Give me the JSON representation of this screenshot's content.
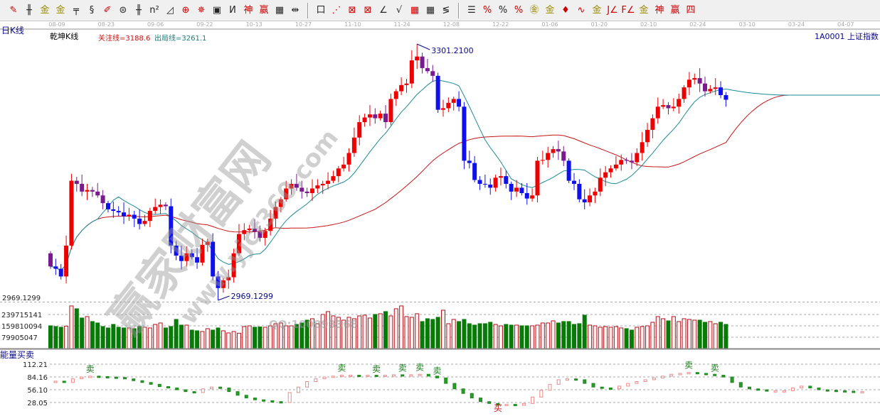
{
  "toolbar": {
    "groups": [
      [
        {
          "name": "pen-icon",
          "g": "✎",
          "c": "r"
        },
        {
          "name": "parallel-lines-icon",
          "g": "╫"
        },
        {
          "name": "gold-line-icon",
          "g": "金",
          "c": "g"
        },
        {
          "name": "gold-split-icon",
          "g": "金",
          "c": "g"
        },
        {
          "name": "step-line-icon",
          "g": "╤"
        },
        {
          "name": "spiral-icon",
          "g": "§"
        },
        {
          "name": "ruler-pen-icon",
          "g": "✐",
          "c": "r"
        },
        {
          "name": "circle-grid-icon",
          "g": "⊜"
        },
        {
          "name": "triple-lines-icon",
          "g": "╫"
        },
        {
          "name": "n-square-icon",
          "g": "n²"
        },
        {
          "name": "triangle-icon",
          "g": "◿"
        },
        {
          "name": "target-icon",
          "g": "⊕",
          "c": "r"
        },
        {
          "name": "compass-icon",
          "g": "✵",
          "c": "r"
        },
        {
          "name": "square-target-icon",
          "g": "▣"
        },
        {
          "name": "wave-icon",
          "g": "И"
        },
        {
          "name": "god-line-icon",
          "g": "神",
          "c": "r"
        },
        {
          "name": "win-line-icon",
          "g": "赢",
          "c": "r"
        },
        {
          "name": "numbered-grid-icon",
          "g": "▦"
        },
        {
          "name": "measure-icon",
          "g": "⇹"
        }
      ],
      [
        {
          "name": "box-icon",
          "g": "口"
        },
        {
          "name": "fan-lines-icon",
          "g": "⋰",
          "c": "r"
        },
        {
          "name": "box-fan-icon",
          "g": "⊠",
          "c": "r"
        },
        {
          "name": "box-fan2-icon",
          "g": "⊠",
          "c": "r"
        },
        {
          "name": "angle-icon",
          "g": "∠"
        },
        {
          "name": "v-line-icon",
          "g": "√"
        },
        {
          "name": "grid-icon",
          "g": "▦",
          "c": "r"
        },
        {
          "name": "grid2-icon",
          "g": "▦"
        },
        {
          "name": "slash-lines-icon",
          "g": "≶"
        }
      ],
      [
        {
          "name": "steps-icon",
          "g": "☰"
        },
        {
          "name": "percent-line-icon",
          "g": "%",
          "c": "r"
        },
        {
          "name": "percent-icon",
          "g": "%"
        },
        {
          "name": "percent-lines-icon",
          "g": "%",
          "c": "r"
        },
        {
          "name": "gold-circle-icon",
          "g": "㊎",
          "c": "g"
        },
        {
          "name": "gold-lines-icon",
          "g": "金",
          "c": "g"
        },
        {
          "name": "rocket-icon",
          "g": "♦",
          "c": "r"
        },
        {
          "name": "sine-icon",
          "g": "∿",
          "c": "r"
        },
        {
          "name": "gold-box-icon",
          "g": "金",
          "c": "g"
        },
        {
          "name": "j-angle-icon",
          "g": "J∠",
          "c": "r"
        },
        {
          "name": "f-angle-icon",
          "g": "F∠",
          "c": "r"
        },
        {
          "name": "gold-angle-icon",
          "g": "金",
          "c": "g"
        },
        {
          "name": "god-angle-icon",
          "g": "神",
          "c": "r"
        },
        {
          "name": "win-angle-icon",
          "g": "赢",
          "c": "r"
        },
        {
          "name": "four-angle-icon",
          "g": "四",
          "c": "r"
        }
      ]
    ]
  },
  "date_axis": [
    {
      "x": "08-09"
    },
    {
      "x": "08-23"
    },
    {
      "x": "09-06"
    },
    {
      "x": "09-22"
    },
    {
      "x": "10-13"
    },
    {
      "x": "10-27"
    },
    {
      "x": "11-10"
    },
    {
      "x": "11-24"
    },
    {
      "x": "12-08"
    },
    {
      "x": "12-22"
    },
    {
      "x": "01-06"
    },
    {
      "x": "01-20"
    },
    {
      "x": "02-10"
    },
    {
      "x": "02-24"
    },
    {
      "x": "03-10"
    },
    {
      "x": "03-24"
    },
    {
      "x": "04-07"
    }
  ],
  "header": {
    "period": "日K线",
    "indicator": "乾坤K线",
    "focus_line": "关注线=3188.6",
    "exit_line": "出局线=3261.1",
    "symbol": "1A0001  上证指数"
  },
  "watermark": {
    "cn": "赢家财富网",
    "url": "www.yjcf360.com",
    "qq": "QQ:100893368"
  },
  "colors": {
    "up": "#ee0000",
    "down": "#1010ee",
    "transition": "#7a1a90",
    "ma_short": "#1a8a9a",
    "ma_long": "#c81414",
    "vol_up": "#b0141e",
    "vol_down": "#087a08",
    "label": "#0a0a8a"
  },
  "chart_data": {
    "type": "candlestick",
    "ylim": [
      2969.1299,
      3301.21
    ],
    "high_label": "3301.2100",
    "high_value": 3301.21,
    "high_index": 70,
    "low_label": "2969.1299",
    "low_value": 2969.1299,
    "low_index": 32,
    "price_axis_label": "2969.1299",
    "first_open": 3030,
    "close": [
      3013,
      3010,
      3000,
      3040,
      3124,
      3120,
      3110,
      3112,
      3110,
      3105,
      3095,
      3087,
      3085,
      3083,
      3078,
      3080,
      3075,
      3068,
      3072,
      3085,
      3090,
      3093,
      3091,
      3040,
      3027,
      3020,
      3030,
      3025,
      3018,
      3041,
      3045,
      3000,
      2985,
      2995,
      2999,
      3030,
      3055,
      3060,
      3062,
      3058,
      3050,
      3059,
      3075,
      3090,
      3100,
      3114,
      3120,
      3115,
      3110,
      3108,
      3114,
      3118,
      3120,
      3124,
      3130,
      3140,
      3145,
      3160,
      3180,
      3200,
      3206,
      3210,
      3205,
      3211,
      3200,
      3230,
      3240,
      3248,
      3250,
      3280,
      3285,
      3270,
      3266,
      3260,
      3216,
      3218,
      3225,
      3230,
      3220,
      3150,
      3147,
      3125,
      3120,
      3119,
      3115,
      3128,
      3130,
      3120,
      3110,
      3115,
      3108,
      3101,
      3105,
      3150,
      3151,
      3160,
      3165,
      3162,
      3150,
      3124,
      3120,
      3100,
      3096,
      3105,
      3110,
      3128,
      3135,
      3140,
      3145,
      3151,
      3150,
      3148,
      3160,
      3174,
      3190,
      3205,
      3220,
      3222,
      3218,
      3220,
      3230,
      3245,
      3255,
      3257,
      3250,
      3240,
      3243,
      3245,
      3235,
      3229
    ],
    "ma_periods": [
      10,
      40
    ],
    "volume": {
      "ticks": [
        "239715141",
        "159810094",
        "79905047"
      ],
      "tick_values": [
        239715141,
        159810094,
        79905047
      ],
      "values_m": [
        160,
        155,
        150,
        158,
        300,
        280,
        215,
        225,
        190,
        180,
        155,
        145,
        170,
        150,
        145,
        145,
        140,
        155,
        150,
        145,
        170,
        180,
        145,
        155,
        205,
        165,
        165,
        130,
        125,
        120,
        140,
        130,
        145,
        125,
        110,
        120,
        108,
        155,
        160,
        150,
        152,
        150,
        160,
        175,
        180,
        160,
        160,
        170,
        180,
        200,
        210,
        175,
        240,
        260,
        230,
        220,
        200,
        220,
        210,
        230,
        235,
        215,
        240,
        245,
        260,
        230,
        280,
        300,
        225,
        220,
        245,
        190,
        210,
        205,
        220,
        270,
        175,
        205,
        190,
        205,
        175,
        165,
        175,
        175,
        185,
        170,
        160,
        170,
        165,
        165,
        160,
        160,
        160,
        165,
        180,
        180,
        195,
        180,
        190,
        190,
        170,
        175,
        235,
        165,
        160,
        150,
        155,
        150,
        155,
        145,
        140,
        130,
        150,
        155,
        160,
        185,
        225,
        210,
        195,
        225,
        190,
        210,
        205,
        200,
        200,
        185,
        190,
        175,
        185,
        170
      ]
    },
    "indicator": {
      "title": "能量买卖",
      "ticks": [
        "112.21",
        "84.16",
        "56.10",
        "28.05"
      ],
      "tick_values": [
        112.21,
        84.16,
        56.1,
        28.05
      ],
      "values": [
        75,
        72,
        80,
        84,
        86,
        85,
        84,
        83,
        80,
        76,
        72,
        68,
        63,
        60,
        56,
        52,
        50,
        58,
        62,
        60,
        52,
        44,
        38,
        34,
        32,
        30,
        28,
        50,
        62,
        74,
        80,
        84,
        86,
        88,
        88,
        87,
        88,
        86,
        88,
        89,
        88,
        89,
        90,
        86,
        82,
        70,
        58,
        48,
        38,
        30,
        26,
        22,
        24,
        22,
        26,
        40,
        55,
        68,
        78,
        80,
        78,
        70,
        62,
        60,
        58,
        64,
        70,
        74,
        78,
        82,
        86,
        90,
        92,
        94,
        92,
        90,
        88,
        84,
        72,
        62,
        58,
        56,
        54,
        54,
        54,
        60,
        64,
        60,
        56,
        55,
        54,
        53,
        52,
        52
      ],
      "signals": [
        {
          "i": 4,
          "text": "卖",
          "type": "sell"
        },
        {
          "i": 33,
          "text": "卖",
          "type": "sell"
        },
        {
          "i": 37,
          "text": "卖",
          "type": "sell"
        },
        {
          "i": 40,
          "text": "卖",
          "type": "sell"
        },
        {
          "i": 42,
          "text": "卖",
          "type": "sell"
        },
        {
          "i": 44,
          "text": "卖",
          "type": "sell"
        },
        {
          "i": 51,
          "text": "买",
          "type": "buy"
        },
        {
          "i": 73,
          "text": "卖",
          "type": "sell"
        },
        {
          "i": 76,
          "text": "卖",
          "type": "sell"
        }
      ]
    }
  }
}
